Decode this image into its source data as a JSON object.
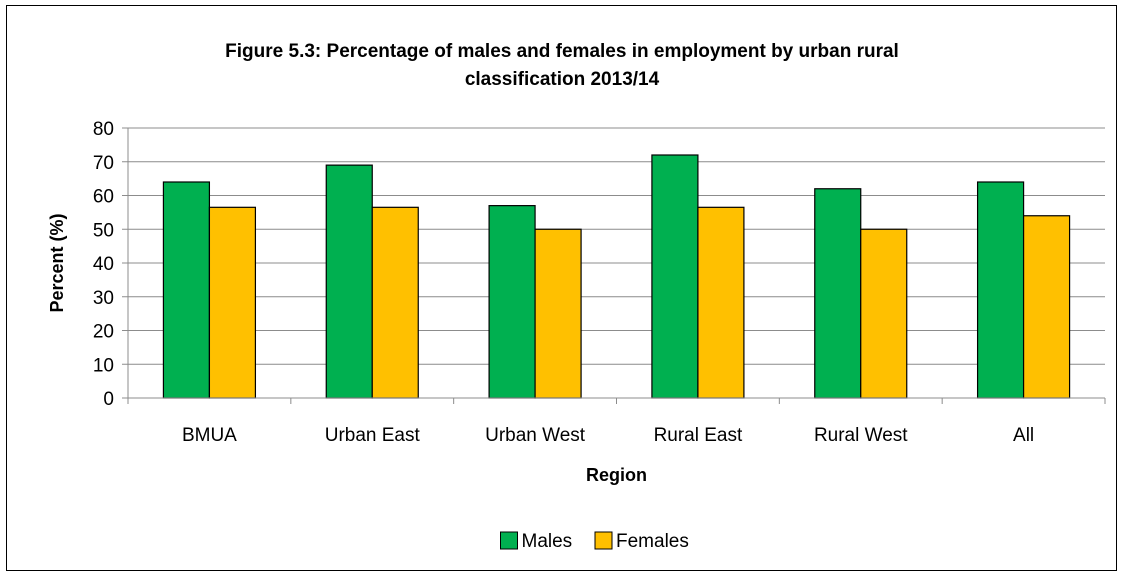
{
  "chart_data": {
    "type": "bar",
    "title_line1": "Figure 5.3:  Percentage of males and females in employment by urban rural",
    "title_line2": "classification  2013/14",
    "xlabel": "Region",
    "ylabel": "Percent (%)",
    "ylim": [
      0,
      80
    ],
    "yticks": [
      0,
      10,
      20,
      30,
      40,
      50,
      60,
      70,
      80
    ],
    "grid": true,
    "legend_position": "bottom",
    "categories": [
      "BMUA",
      "Urban East",
      "Urban West",
      "Rural East",
      "Rural West",
      "All"
    ],
    "series": [
      {
        "name": "Males",
        "color": "#00b050",
        "values": [
          64,
          69,
          57,
          72,
          62,
          64
        ]
      },
      {
        "name": "Females",
        "color": "#ffc000",
        "values": [
          56.5,
          56.5,
          50,
          56.5,
          50,
          54
        ]
      }
    ]
  }
}
